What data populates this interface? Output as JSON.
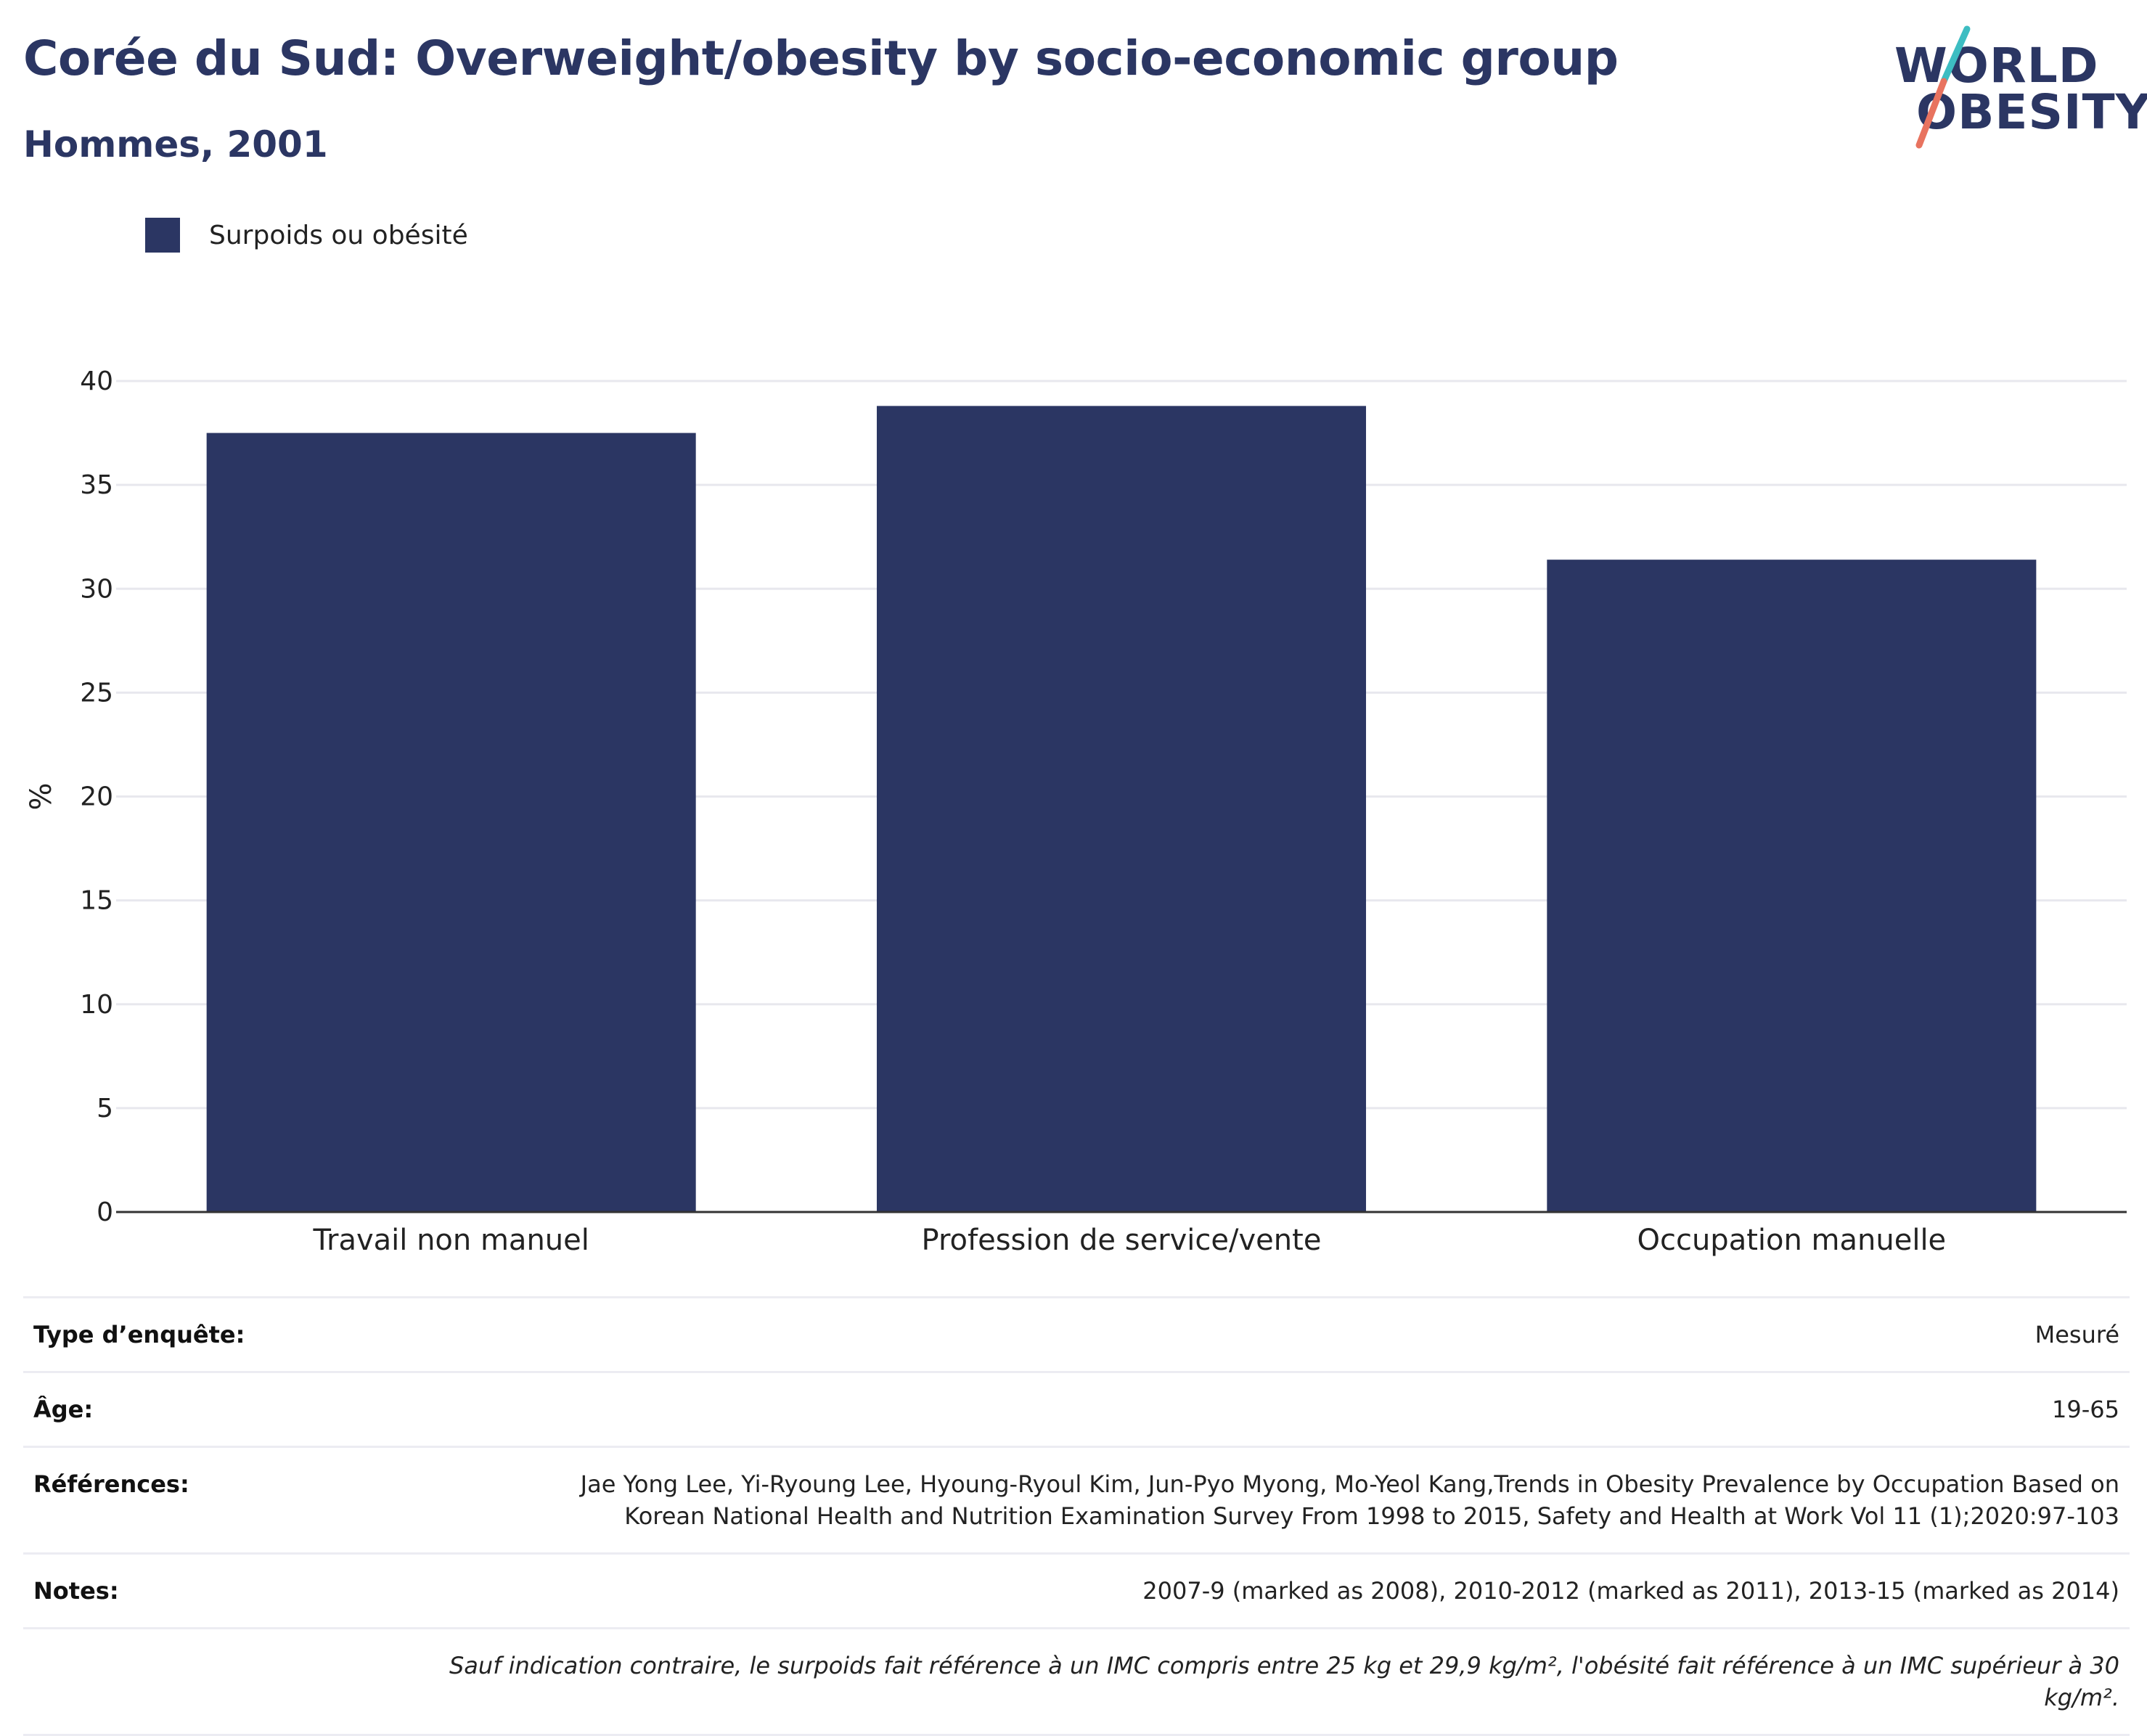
{
  "header": {
    "title": "Corée du Sud: Overweight/obesity by socio-economic group",
    "subtitle": "Hommes, 2001"
  },
  "logo": {
    "line1": "WORLD",
    "line2": "OBESITY"
  },
  "colors": {
    "bar": "#2b3663",
    "title": "#2b3663",
    "logo_teal": "#3dbdc2",
    "logo_coral": "#e8735f",
    "grid": "#e8e8ee",
    "axis": "#333333"
  },
  "legend": {
    "label": "Surpoids ou obésité"
  },
  "chart_data": {
    "type": "bar",
    "categories": [
      "Travail non manuel",
      "Profession de service/vente",
      "Occupation manuelle"
    ],
    "series": [
      {
        "name": "Surpoids ou obésité",
        "values": [
          37.5,
          38.8,
          31.4
        ]
      }
    ],
    "ylabel": "%",
    "ylim": [
      0,
      40
    ],
    "yticks": [
      0,
      5,
      10,
      15,
      20,
      25,
      30,
      35,
      40
    ],
    "grid": true
  },
  "info": {
    "survey_type": {
      "label": "Type d’enquête:",
      "value": "Mesuré"
    },
    "age": {
      "label": "Âge:",
      "value": "19-65"
    },
    "references": {
      "label": "Références:",
      "line1": "Jae Yong Lee, Yi-Ryoung Lee, Hyoung-Ryoul Kim, Jun-Pyo Myong, Mo-Yeol Kang,Trends in Obesity Prevalence by Occupation Based on",
      "line2": "Korean National Health and Nutrition Examination Survey From 1998 to 2015, Safety and Health at Work Vol 11 (1);2020:97-103"
    },
    "notes": {
      "label": "Notes:",
      "value": "2007-9 (marked as 2008), 2010-2012 (marked as 2011), 2013-15 (marked as 2014)"
    },
    "definition": "Sauf indication contraire, le surpoids fait référence à un IMC compris entre 25 kg et 29,9 kg/m², l'obésité fait référence à un IMC supérieur à 30 kg/m²."
  }
}
